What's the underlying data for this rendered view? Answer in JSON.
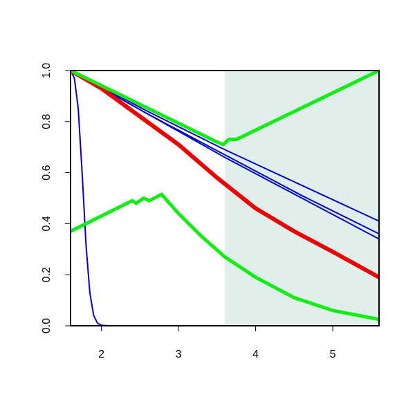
{
  "chart_data": {
    "type": "line",
    "xlim": [
      1.6,
      5.6
    ],
    "ylim": [
      0,
      1
    ],
    "xticks": [
      2,
      3,
      4,
      5
    ],
    "yticks": [
      {
        "value": 0,
        "label": "0.0"
      },
      0.2,
      0.4,
      0.6,
      0.8,
      {
        "value": 1,
        "label": "1.0"
      }
    ],
    "shaded_region": {
      "x": [
        3.6,
        5.6
      ],
      "color": "#e0eeec"
    },
    "series": [
      {
        "color": "#0000cc",
        "line_width": 2,
        "x": [
          1.6,
          1.65,
          1.7,
          1.75,
          1.8,
          1.85,
          1.9,
          1.95,
          2.0,
          2.1,
          5.6
        ],
        "values": [
          1.0,
          0.97,
          0.85,
          0.6,
          0.32,
          0.13,
          0.04,
          0.01,
          0.002,
          0,
          0
        ]
      },
      {
        "color": "#0000cc",
        "line_width": 2,
        "x": [
          1.6,
          2.6,
          3.6,
          4.6,
          5.6
        ],
        "values": [
          1.0,
          0.84,
          0.69,
          0.55,
          0.41
        ]
      },
      {
        "color": "#0000cc",
        "line_width": 2,
        "x": [
          1.6,
          2.6,
          3.6,
          4.6,
          5.6
        ],
        "values": [
          1.0,
          0.83,
          0.67,
          0.51,
          0.36
        ]
      },
      {
        "color": "#0000cc",
        "line_width": 2,
        "x": [
          1.6,
          2.6,
          3.6,
          4.6,
          5.6
        ],
        "values": [
          1.0,
          0.83,
          0.66,
          0.5,
          0.34
        ]
      },
      {
        "color": "#ee0000",
        "line_width": 6,
        "x": [
          1.6,
          2.0,
          2.5,
          3.0,
          3.5,
          4.0,
          4.5,
          5.0,
          5.6
        ],
        "values": [
          1.0,
          0.93,
          0.82,
          0.71,
          0.58,
          0.46,
          0.37,
          0.29,
          0.19
        ]
      },
      {
        "color": "#11ee11",
        "line_width": 5,
        "x": [
          1.6,
          3.5,
          3.58,
          3.65,
          3.75,
          5.6
        ],
        "values": [
          1.0,
          0.72,
          0.71,
          0.73,
          0.73,
          1.0
        ]
      },
      {
        "color": "#11ee11",
        "line_width": 5,
        "x": [
          1.6,
          2.4,
          2.45,
          2.55,
          2.62,
          2.75,
          2.78,
          3.0,
          3.3,
          3.6,
          4.0,
          4.5,
          5.0,
          5.6
        ],
        "values": [
          0.37,
          0.49,
          0.48,
          0.5,
          0.49,
          0.51,
          0.515,
          0.44,
          0.35,
          0.27,
          0.19,
          0.11,
          0.06,
          0.025
        ]
      }
    ]
  }
}
